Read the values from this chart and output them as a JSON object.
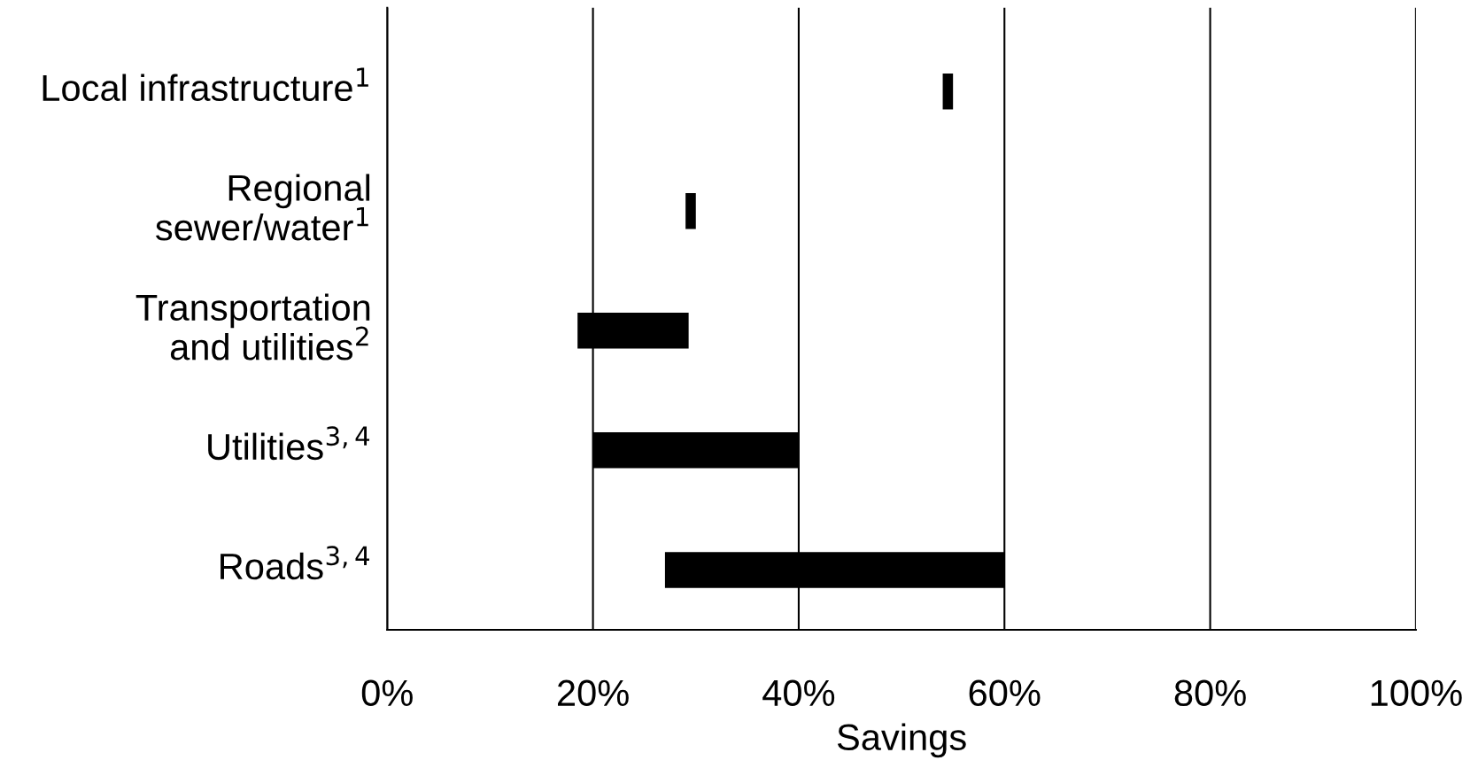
{
  "chart_data": {
    "type": "bar",
    "orientation": "horizontal",
    "xlabel": "Savings",
    "categories": [
      "Local infrastructure$^{1}$",
      "Regional\nsewer/water$^{1}$",
      "Transportation\nand utilities$^{2}$",
      "Utilities$^{3,4}$",
      "Roads$^{3,4}$"
    ],
    "base": [
      54,
      29,
      18.5,
      20,
      27
    ],
    "values": [
      1,
      1,
      10.8,
      20,
      33
    ],
    "color": "#000000",
    "xlim": [
      0,
      100
    ],
    "xticks": [
      {
        "value": 0,
        "label": "0%"
      },
      {
        "value": 20,
        "label": "20%"
      },
      {
        "value": 40,
        "label": "40%"
      },
      {
        "value": 60,
        "label": "60%"
      },
      {
        "value": 80,
        "label": "80%"
      },
      {
        "value": 100,
        "label": "100%"
      }
    ],
    "grid": "x",
    "legend": false
  }
}
